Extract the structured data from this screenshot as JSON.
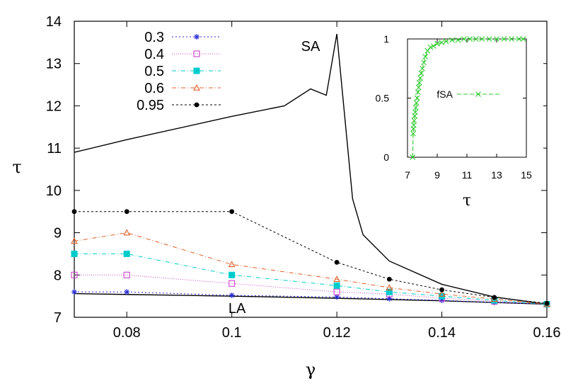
{
  "chart_data": [
    {
      "type": "line",
      "xlabel": "γ",
      "ylabel": "τ",
      "xlim": [
        0.07,
        0.16
      ],
      "ylim": [
        7,
        14
      ],
      "xticks": [
        "0.08",
        "0.1",
        "0.12",
        "0.14",
        "0.16"
      ],
      "xtick_values": [
        0.08,
        0.1,
        0.12,
        0.14,
        0.16
      ],
      "yticks": [
        "7",
        "8",
        "9",
        "10",
        "11",
        "12",
        "13",
        "14"
      ],
      "ytick_values": [
        7,
        8,
        9,
        10,
        11,
        12,
        13,
        14
      ],
      "legend_position": "top-left",
      "annotations": [
        {
          "text": "SA",
          "x": 0.115,
          "y": 13.3
        },
        {
          "text": "LA",
          "x": 0.101,
          "y": 7.1
        }
      ],
      "curves": [
        {
          "label": "SA",
          "color": "#000000",
          "x": [
            0.07,
            0.08,
            0.1,
            0.11,
            0.115,
            0.118,
            0.12,
            0.123,
            0.125,
            0.13,
            0.14,
            0.15,
            0.16
          ],
          "y": [
            10.9,
            11.2,
            11.75,
            12.0,
            12.4,
            12.25,
            13.7,
            9.8,
            8.95,
            8.33,
            7.78,
            7.48,
            7.31
          ]
        },
        {
          "label": "LA",
          "color": "#000000",
          "x": [
            0.07,
            0.08,
            0.1,
            0.12,
            0.13,
            0.14,
            0.15,
            0.16
          ],
          "y": [
            7.56,
            7.54,
            7.5,
            7.45,
            7.42,
            7.39,
            7.35,
            7.31
          ]
        }
      ],
      "series": [
        {
          "name": "0.3",
          "color": "#2b2bd4",
          "marker": "star",
          "dash": "2,3",
          "x": [
            0.07,
            0.08,
            0.1,
            0.12,
            0.13,
            0.14,
            0.15,
            0.16
          ],
          "y": [
            7.6,
            7.6,
            7.52,
            7.48,
            7.44,
            7.4,
            7.35,
            7.31
          ]
        },
        {
          "name": "0.4",
          "color": "#cc44cc",
          "marker": "open-square",
          "dash": "1,2",
          "x": [
            0.07,
            0.08,
            0.1,
            0.12,
            0.13,
            0.14,
            0.15,
            0.16
          ],
          "y": [
            8.0,
            8.0,
            7.8,
            7.6,
            7.55,
            7.45,
            7.38,
            7.31
          ]
        },
        {
          "name": "0.5",
          "color": "#00cccc",
          "marker": "filled-square",
          "dash": "6,3,1,3",
          "x": [
            0.07,
            0.08,
            0.1,
            0.12,
            0.13,
            0.14,
            0.15,
            0.16
          ],
          "y": [
            8.5,
            8.5,
            8.0,
            7.75,
            7.6,
            7.5,
            7.4,
            7.31
          ]
        },
        {
          "name": "0.6",
          "color": "#e0602a",
          "marker": "open-triangle",
          "dash": "6,3,1,3",
          "x": [
            0.07,
            0.08,
            0.1,
            0.12,
            0.13,
            0.14,
            0.15,
            0.16
          ],
          "y": [
            8.8,
            9.0,
            8.25,
            7.9,
            7.7,
            7.55,
            7.43,
            7.31
          ]
        },
        {
          "name": "0.95",
          "color": "#000000",
          "marker": "filled-circle",
          "dash": "3,3",
          "x": [
            0.07,
            0.08,
            0.1,
            0.12,
            0.13,
            0.14,
            0.15,
            0.16
          ],
          "y": [
            9.5,
            9.5,
            9.5,
            8.3,
            7.9,
            7.65,
            7.47,
            7.33
          ]
        }
      ]
    },
    {
      "type": "line",
      "xlabel": "τ",
      "ylabel": "",
      "xlim": [
        7,
        15
      ],
      "ylim": [
        0,
        1
      ],
      "xticks": [
        "7",
        "9",
        "11",
        "13",
        "15"
      ],
      "xtick_values": [
        7,
        9,
        11,
        13,
        15
      ],
      "yticks": [
        "0",
        "0.5",
        "1"
      ],
      "ytick_values": [
        0,
        0.5,
        1
      ],
      "legend_position": "center-right",
      "series": [
        {
          "name": "fSA",
          "color": "#33cc33",
          "marker": "cross",
          "dash": "6,3",
          "x": [
            7.35,
            7.38,
            7.4,
            7.42,
            7.45,
            7.48,
            7.52,
            7.56,
            7.6,
            7.65,
            7.7,
            7.75,
            7.8,
            7.86,
            7.92,
            8.0,
            8.1,
            8.2,
            8.35,
            8.55,
            8.75,
            9.0,
            9.3,
            9.6,
            10.0,
            10.4,
            10.8,
            11.2,
            11.6,
            12.0,
            12.5,
            13.0,
            13.5,
            14.0,
            14.5,
            14.8
          ],
          "y": [
            0.0,
            0.2,
            0.24,
            0.27,
            0.31,
            0.35,
            0.38,
            0.42,
            0.46,
            0.5,
            0.55,
            0.59,
            0.63,
            0.67,
            0.71,
            0.75,
            0.8,
            0.85,
            0.9,
            0.93,
            0.94,
            0.96,
            0.97,
            0.98,
            0.99,
            0.99,
            1.0,
            1.0,
            1.0,
            1.0,
            1.0,
            1.0,
            1.0,
            1.0,
            1.0,
            1.0
          ]
        }
      ]
    }
  ]
}
